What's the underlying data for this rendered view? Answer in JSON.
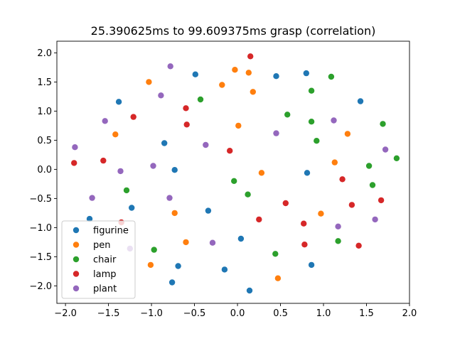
{
  "chart_data": {
    "type": "scatter",
    "title": "25.390625ms to 99.609375ms grasp (correlation)",
    "xlabel": "",
    "ylabel": "",
    "xlim": [
      -2.1,
      2.0
    ],
    "ylim": [
      -2.3,
      2.2
    ],
    "xticks": [
      -2.0,
      -1.5,
      -1.0,
      -0.5,
      0.0,
      0.5,
      1.0,
      1.5,
      2.0
    ],
    "yticks": [
      -2.0,
      -1.5,
      -1.0,
      -0.5,
      0.0,
      0.5,
      1.0,
      1.5,
      2.0
    ],
    "xtick_labels": [
      "−2.0",
      "−1.5",
      "−1.0",
      "−0.5",
      "0.0",
      "0.5",
      "1.0",
      "1.5",
      "2.0"
    ],
    "ytick_labels": [
      "−2.0",
      "−1.5",
      "−1.0",
      "−0.5",
      "0.0",
      "0.5",
      "1.0",
      "1.5",
      "2.0"
    ],
    "grid": false,
    "legend_position": "lower-left",
    "series": [
      {
        "name": "figurine",
        "color": "#1f77b4",
        "points": [
          [
            -0.49,
            1.63
          ],
          [
            0.45,
            1.6
          ],
          [
            0.8,
            1.65
          ],
          [
            -1.38,
            1.16
          ],
          [
            1.43,
            1.17
          ],
          [
            -0.85,
            0.45
          ],
          [
            -0.73,
            -0.01
          ],
          [
            0.81,
            -0.06
          ],
          [
            -1.23,
            -0.66
          ],
          [
            -0.34,
            -0.71
          ],
          [
            -1.72,
            -0.85
          ],
          [
            0.04,
            -1.19
          ],
          [
            -0.69,
            -1.66
          ],
          [
            -0.15,
            -1.72
          ],
          [
            0.86,
            -1.64
          ],
          [
            -0.76,
            -1.94
          ],
          [
            0.14,
            -2.08
          ]
        ]
      },
      {
        "name": "pen",
        "color": "#ff7f0e",
        "points": [
          [
            -0.03,
            1.71
          ],
          [
            0.13,
            1.66
          ],
          [
            -1.03,
            1.5
          ],
          [
            -0.18,
            1.45
          ],
          [
            0.18,
            1.33
          ],
          [
            -1.42,
            0.6
          ],
          [
            0.01,
            0.75
          ],
          [
            1.28,
            0.61
          ],
          [
            1.13,
            0.12
          ],
          [
            0.28,
            -0.06
          ],
          [
            -0.73,
            -0.75
          ],
          [
            0.97,
            -0.76
          ],
          [
            -0.6,
            -1.25
          ],
          [
            -1.01,
            -1.64
          ],
          [
            0.47,
            -1.87
          ]
        ]
      },
      {
        "name": "chair",
        "color": "#2ca02c",
        "points": [
          [
            1.09,
            1.59
          ],
          [
            -0.43,
            1.2
          ],
          [
            0.86,
            1.35
          ],
          [
            0.58,
            0.94
          ],
          [
            0.86,
            0.82
          ],
          [
            1.69,
            0.78
          ],
          [
            0.92,
            0.49
          ],
          [
            1.85,
            0.19
          ],
          [
            1.53,
            0.06
          ],
          [
            -0.04,
            -0.2
          ],
          [
            1.57,
            -0.27
          ],
          [
            -1.29,
            -0.36
          ],
          [
            0.12,
            -0.43
          ],
          [
            -0.97,
            -1.38
          ],
          [
            1.17,
            -1.23
          ],
          [
            0.44,
            -1.45
          ]
        ]
      },
      {
        "name": "lamp",
        "color": "#d62728",
        "points": [
          [
            0.15,
            1.94
          ],
          [
            -0.6,
            1.05
          ],
          [
            -1.21,
            0.9
          ],
          [
            -0.59,
            0.77
          ],
          [
            -0.09,
            0.32
          ],
          [
            -1.9,
            0.11
          ],
          [
            -1.56,
            0.15
          ],
          [
            1.22,
            -0.17
          ],
          [
            1.67,
            -0.53
          ],
          [
            0.56,
            -0.58
          ],
          [
            1.33,
            -0.61
          ],
          [
            0.25,
            -0.86
          ],
          [
            -1.35,
            -0.91
          ],
          [
            0.77,
            -0.93
          ],
          [
            0.78,
            -1.29
          ],
          [
            1.41,
            -1.31
          ]
        ]
      },
      {
        "name": "plant",
        "color": "#9467bd",
        "points": [
          [
            -0.78,
            1.77
          ],
          [
            -0.89,
            1.27
          ],
          [
            -1.54,
            0.83
          ],
          [
            1.12,
            0.84
          ],
          [
            0.45,
            0.62
          ],
          [
            -0.37,
            0.42
          ],
          [
            -1.89,
            0.38
          ],
          [
            1.72,
            0.34
          ],
          [
            -0.98,
            0.06
          ],
          [
            -1.36,
            -0.03
          ],
          [
            -1.69,
            -0.49
          ],
          [
            -0.79,
            -0.49
          ],
          [
            1.17,
            -0.98
          ],
          [
            1.6,
            -0.86
          ],
          [
            -0.29,
            -1.26
          ],
          [
            -1.25,
            -1.36
          ]
        ]
      }
    ]
  }
}
